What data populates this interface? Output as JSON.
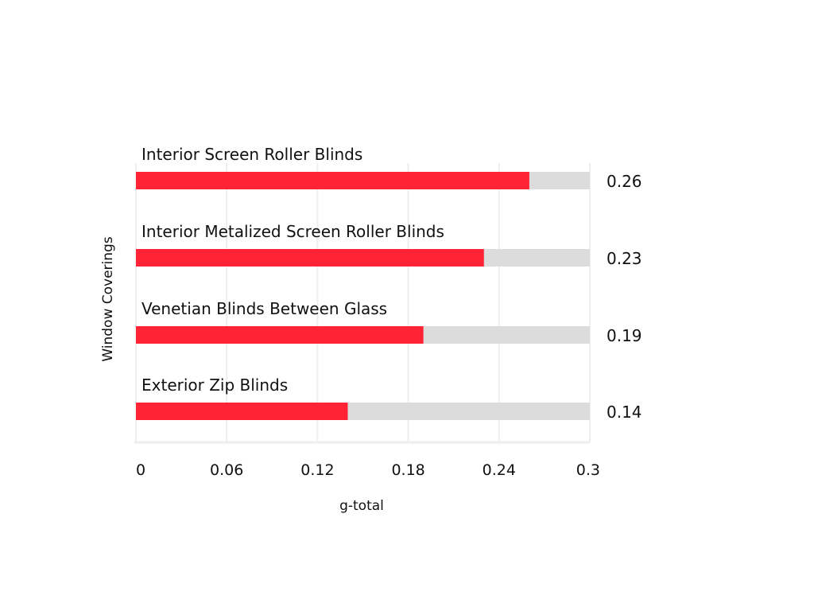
{
  "chart_data": {
    "type": "bar",
    "orientation": "horizontal",
    "categories": [
      "Interior Screen Roller Blinds",
      "Interior Metalized Screen Roller Blinds",
      "Venetian Blinds Between Glass",
      "Exterior Zip Blinds"
    ],
    "values": [
      0.26,
      0.23,
      0.19,
      0.14
    ],
    "value_labels": [
      "0.26",
      "0.23",
      "0.19",
      "0.14"
    ],
    "xlabel": "g-total",
    "ylabel": "Window Coverings",
    "xlim": [
      0,
      0.3
    ],
    "xticks": [
      "0",
      "0.06",
      "0.12",
      "0.18",
      "0.24",
      "0.3"
    ],
    "grid": true,
    "colors": {
      "bar": "#ff2335",
      "track": "#dddcdc",
      "grid": "#eeeeee"
    }
  }
}
